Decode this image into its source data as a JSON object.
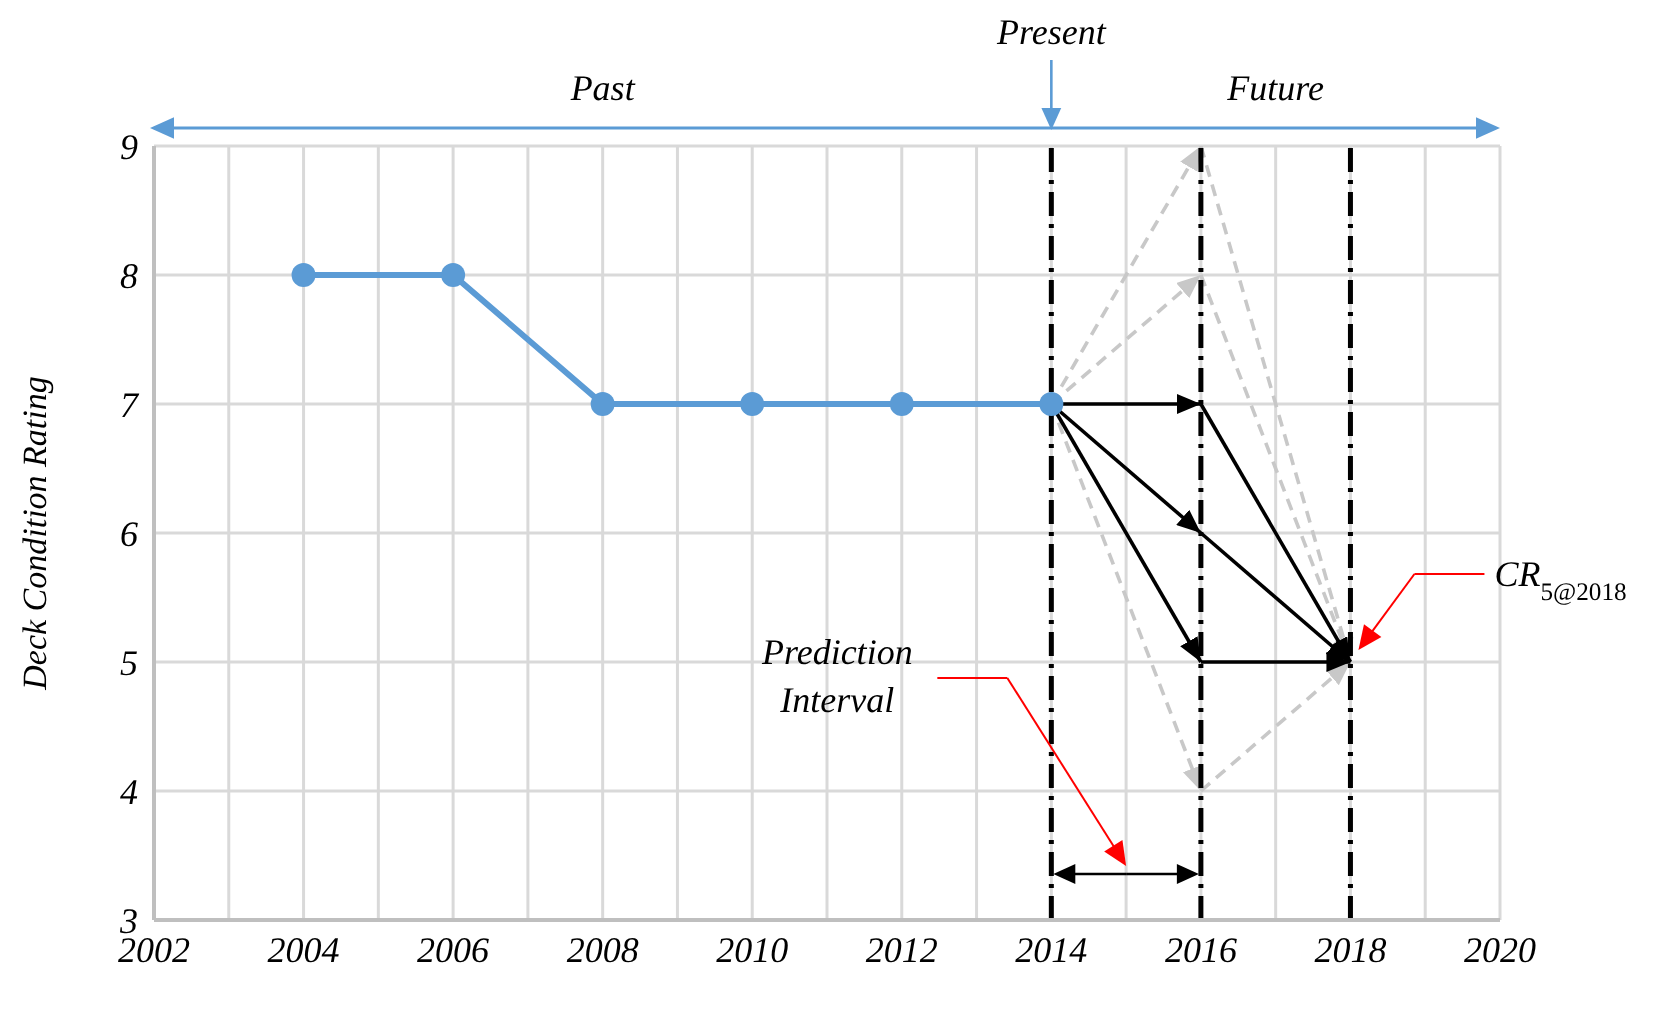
{
  "chart_data": {
    "type": "line",
    "ylabel": "Deck Condition Rating",
    "xlim": [
      2002,
      2020
    ],
    "xticks": [
      2002,
      {
        "value": 2003,
        "label": null
      },
      2004,
      {
        "value": 2005,
        "label": null
      },
      2006,
      {
        "value": 2007,
        "label": null
      },
      2008,
      {
        "value": 2009,
        "label": null
      },
      2010,
      {
        "value": 2011,
        "label": null
      },
      2012,
      {
        "value": 2013,
        "label": null
      },
      2014,
      {
        "value": 2015,
        "label": null
      },
      2016,
      {
        "value": 2017,
        "label": null
      },
      2018,
      {
        "value": 2019,
        "label": null
      },
      2020
    ],
    "ylim": [
      3,
      9
    ],
    "yticks": [
      3,
      4,
      5,
      6,
      7,
      8,
      9
    ],
    "grid": true,
    "series": [
      {
        "color": "#5b9bd5",
        "x": [
          2004,
          2006,
          2008,
          2010,
          2012,
          2014
        ],
        "values": [
          8,
          8,
          7,
          7,
          7,
          7
        ],
        "marker": "circle",
        "line_style": "solid"
      },
      {
        "color": "#c8c8c8",
        "x": [
          2014,
          2016
        ],
        "values": [
          7,
          9
        ],
        "line_style": "dashed"
      },
      {
        "color": "#c8c8c8",
        "x": [
          2014,
          2016
        ],
        "values": [
          7,
          8
        ],
        "line_style": "dashed"
      },
      {
        "color": "#c8c8c8",
        "x": [
          2014,
          2016
        ],
        "values": [
          7,
          4
        ],
        "line_style": "dashed"
      },
      {
        "color": "#c8c8c8",
        "x": [
          2016,
          2018
        ],
        "values": [
          9,
          5
        ],
        "line_style": "dashed"
      },
      {
        "color": "#c8c8c8",
        "x": [
          2016,
          2018
        ],
        "values": [
          8,
          5
        ],
        "line_style": "dashed"
      },
      {
        "color": "#c8c8c8",
        "x": [
          2016,
          2018
        ],
        "values": [
          4,
          5
        ],
        "line_style": "dashed"
      },
      {
        "color": "#000000",
        "x": [
          2014,
          2016
        ],
        "values": [
          7,
          7
        ],
        "line_style": "solid"
      },
      {
        "color": "#000000",
        "x": [
          2014,
          2016
        ],
        "values": [
          7,
          6
        ],
        "line_style": "solid"
      },
      {
        "color": "#000000",
        "x": [
          2014,
          2016
        ],
        "values": [
          7,
          5
        ],
        "line_style": "solid"
      },
      {
        "color": "#000000",
        "x": [
          2016,
          2018
        ],
        "values": [
          7,
          5
        ],
        "line_style": "solid"
      },
      {
        "color": "#000000",
        "x": [
          2016,
          2018
        ],
        "values": [
          6,
          5
        ],
        "line_style": "solid"
      },
      {
        "color": "#000000",
        "x": [
          2016,
          2018
        ],
        "values": [
          5,
          5
        ],
        "line_style": "solid"
      }
    ],
    "ref_lines": [
      {
        "axis": "x",
        "value": 2014,
        "color": "#000000",
        "line_style": "dashed"
      },
      {
        "axis": "x",
        "value": 2016,
        "color": "#000000",
        "line_style": "dashed"
      },
      {
        "axis": "x",
        "value": 2018,
        "color": "#000000",
        "line_style": "dashed"
      }
    ],
    "annotations": [
      "Past",
      "Future",
      "Present",
      "Prediction Interval",
      "CR$_{5@2018}$"
    ]
  }
}
